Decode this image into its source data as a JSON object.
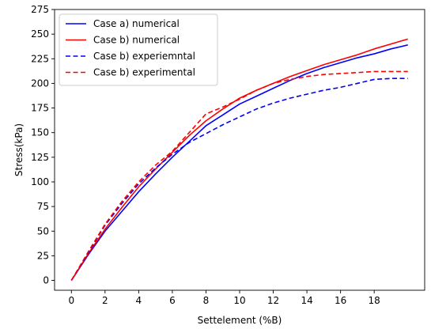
{
  "chart_data": {
    "type": "line",
    "title": "",
    "xlabel": "Settelement (%B)",
    "ylabel": "Stress(kPa)",
    "xlim": [
      -1,
      21
    ],
    "ylim": [
      -10,
      275
    ],
    "xticks": [
      0,
      2,
      4,
      6,
      8,
      10,
      12,
      14,
      16,
      18
    ],
    "yticks": [
      0,
      25,
      50,
      75,
      100,
      125,
      150,
      175,
      200,
      225,
      250,
      275
    ],
    "grid": false,
    "legend_position": "top-left",
    "series": [
      {
        "name": "Case a) numerical",
        "color": "#0000ff",
        "style": "solid",
        "x": [
          0,
          1,
          2,
          3,
          4,
          5,
          6,
          7,
          8,
          9,
          10,
          11,
          12,
          13,
          14,
          15,
          16,
          17,
          18,
          19,
          20
        ],
        "y": [
          0,
          26,
          50,
          70,
          90,
          108,
          125,
          141,
          157,
          168,
          179,
          187,
          195,
          203,
          210,
          216,
          221,
          226,
          230,
          235,
          239
        ]
      },
      {
        "name": "Case b) numerical",
        "color": "#ff0000",
        "style": "solid",
        "x": [
          0,
          1,
          2,
          3,
          4,
          5,
          6,
          7,
          8,
          9,
          10,
          11,
          12,
          13,
          14,
          15,
          16,
          17,
          18,
          19,
          20
        ],
        "y": [
          0,
          27,
          52,
          74,
          95,
          113,
          130,
          147,
          162,
          174,
          185,
          193,
          200,
          207,
          213,
          219,
          224,
          229,
          235,
          240,
          245
        ]
      },
      {
        "name": "Case b) experiemntal",
        "color": "#0000ff",
        "style": "dashed",
        "x": [
          0,
          1,
          2,
          3,
          4,
          5,
          6,
          7,
          8,
          9,
          10,
          11,
          12,
          13,
          14,
          15,
          16,
          17,
          18,
          19,
          20
        ],
        "y": [
          0,
          28,
          56,
          78,
          98,
          114,
          128,
          140,
          149,
          158,
          166,
          174,
          180,
          185,
          189,
          193,
          196,
          200,
          204,
          205,
          205
        ]
      },
      {
        "name": "Case b) experimental",
        "color": "#ff0000",
        "style": "dashed",
        "x": [
          0,
          1,
          2,
          3,
          4,
          5,
          6,
          7,
          8,
          9,
          10,
          11,
          12,
          13,
          14,
          15,
          16,
          17,
          18,
          19,
          20
        ],
        "y": [
          0,
          29,
          57,
          80,
          100,
          117,
          131,
          150,
          169,
          176,
          184,
          193,
          200,
          204,
          207,
          209,
          210,
          211,
          212,
          212,
          212
        ]
      }
    ]
  }
}
